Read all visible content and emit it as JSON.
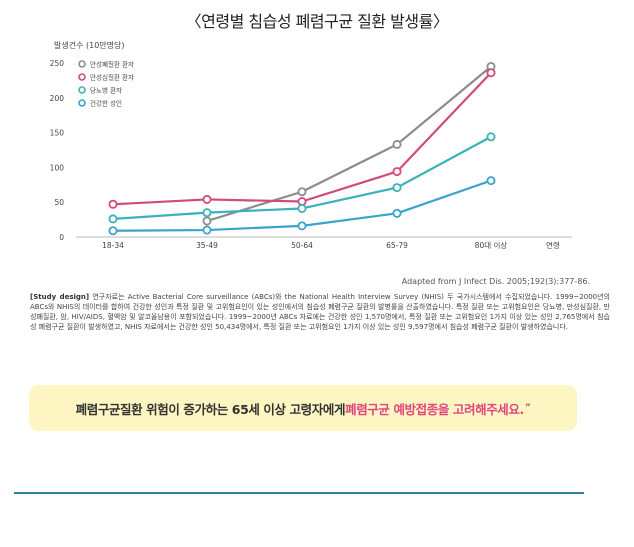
{
  "title": "〈연령별 침습성 폐렴구균 질환 발생률〉",
  "chart_data": {
    "type": "line",
    "title": "〈연령별 침습성 폐렴구균 질환 발생률〉",
    "ylabel": "발생건수 (10만명당)",
    "xlabel": "연령",
    "categories": [
      "18-34",
      "35-49",
      "50-64",
      "65-79",
      "80대 이상"
    ],
    "ylim": [
      0,
      250
    ],
    "yticks": [
      0,
      50,
      100,
      150,
      200,
      250
    ],
    "grid": false,
    "legend_position": "top-left",
    "series": [
      {
        "name": "만성폐질환 환자",
        "color": "#8c8c8c",
        "values": [
          null,
          23,
          65,
          133,
          245
        ]
      },
      {
        "name": "만성심질환 환자",
        "color": "#d4497d",
        "values": [
          47,
          54,
          51,
          94,
          236
        ]
      },
      {
        "name": "당뇨병 환자",
        "color": "#3ab3b8",
        "values": [
          26,
          35,
          41,
          71,
          144
        ]
      },
      {
        "name": "건강한 성인",
        "color": "#3aa3cc",
        "values": [
          9,
          10,
          16,
          34,
          81
        ]
      }
    ]
  },
  "source": "Adapted from J Infect Dis. 2005;192(3):377-86.",
  "study": {
    "label": "[Study design]",
    "text": " 연구자료는 Active Bacterial Core surveillance (ABCs)와 the National Health Interview Survey (NHIS) 두 국가시스템에서 수집되었습니다. 1999~2000년의 ABCs와 NHIS의 데이터를 합하여 건강한 성인과 특정 질환 및 고위험요인이 있는 성인에서의 침습성 폐렴구균 질환의 발병률을 산출하였습니다. 특정 질환 또는 고위험요인은 당뇨병, 만성심질환, 만성폐질환, 암, HIV/AIDS, 혈액암 및 알코올남용이 포함되었습니다. 1999~2000년 ABCs 자료에는 건강한 성인 1,570명에서, 특정 질환 또는 고위험요인 1가지 이상 있는 성인 2,765명에서 침습성 폐렴구균 질환이 발생하였고, NHIS 자료에서는 건강한 성인 50,434명에서, 특정 질환 또는 고위험요인 1가지 이상 있는 성인 9,597명에서 침습성 폐렴구균 질환이 발생하였습니다."
  },
  "callout": {
    "prefix": "폐렴구균질환 위험이 증가하는 65세 이상 고령자에게 ",
    "highlight": "폐렴구균 예방접종을 고려해주세요.",
    "quote": "”"
  }
}
